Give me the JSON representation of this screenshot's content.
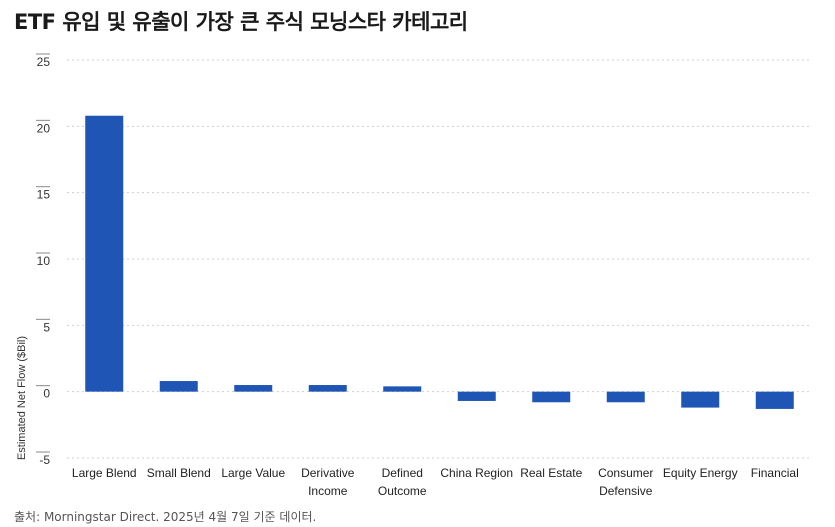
{
  "title": "ETF 유입 및 유출이 가장 큰 주식 모닝스타 카테고리",
  "source": "출처: Morningstar Direct. 2025년 4월 7일 기준 데이터.",
  "colors": {
    "bar": "#1f55b5",
    "grid": "#cfcfcf",
    "tick": "#888888"
  },
  "chart_data": {
    "type": "bar",
    "title": "ETF 유입 및 유출이 가장 큰 주식 모닝스타 카테고리",
    "ylabel": "Estimated Net Flow ($Bil)",
    "xlabel": "",
    "ylim": [
      -5,
      25
    ],
    "yticks": [
      -5,
      0,
      5,
      10,
      15,
      20,
      25
    ],
    "grid": true,
    "categories": [
      [
        "Large Blend"
      ],
      [
        "Small Blend"
      ],
      [
        "Large Value"
      ],
      [
        "Derivative",
        "Income"
      ],
      [
        "Defined",
        "Outcome"
      ],
      [
        "China Region"
      ],
      [
        "Real Estate"
      ],
      [
        "Consumer",
        "Defensive"
      ],
      [
        "Equity Energy"
      ],
      [
        "Financial"
      ]
    ],
    "values": [
      20.8,
      0.8,
      0.5,
      0.5,
      0.4,
      -0.7,
      -0.8,
      -0.8,
      -1.2,
      -1.3
    ]
  }
}
